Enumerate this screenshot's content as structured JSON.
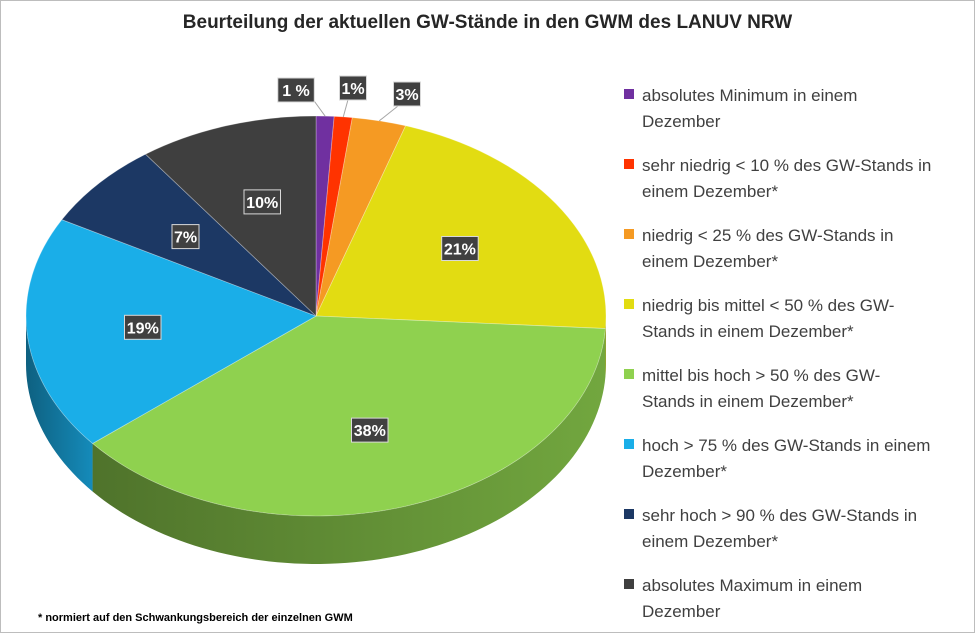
{
  "chart_data": {
    "type": "pie",
    "title": "Beurteilung der aktuellen GW-Stände in den GWM des LANUV NRW",
    "slices": [
      {
        "label": "absolutes Minimum  in einem Dezember",
        "value": 1,
        "display": "1 %",
        "color": "#7030a0"
      },
      {
        "label": "sehr niedrig  < 10 % des GW-Stands in einem Dezember*",
        "value": 1,
        "display": "1%",
        "color": "#ff3300"
      },
      {
        "label": "niedrig   < 25 % des GW-Stands in einem Dezember*",
        "value": 3,
        "display": "3%",
        "color": "#f59a23"
      },
      {
        "label": "niedrig bis mittel  < 50 % des GW-Stands in einem Dezember*",
        "value": 21,
        "display": "21%",
        "color": "#e2dc12"
      },
      {
        "label": "mittel bis hoch  > 50 % des GW-Stands in einem Dezember*",
        "value": 38,
        "display": "38%",
        "color": "#8fd14f"
      },
      {
        "label": "hoch  > 75 % des GW-Stands in einem Dezember*",
        "value": 19,
        "display": "19%",
        "color": "#1aaee8"
      },
      {
        "label": "sehr hoch  > 90 % des GW-Stands in einem Dezember*",
        "value": 7,
        "display": "7%",
        "color": "#1c3864"
      },
      {
        "label": "absolutes Maximum  in einem Dezember",
        "value": 10,
        "display": "10%",
        "color": "#3f3f3f"
      }
    ],
    "legend_position": "right",
    "footnote": "* normiert auf den Schwankungsbereich der einzelnen GWM"
  },
  "legend": {
    "items": [
      {
        "text": "absolutes Minimum  in einem\nDezember",
        "color": "#7030a0"
      },
      {
        "text": "sehr niedrig  < 10 % des GW-Stands in\neinem Dezember*",
        "color": "#ff3300"
      },
      {
        "text": "niedrig   < 25 % des GW-Stands in\neinem Dezember*",
        "color": "#f59a23"
      },
      {
        "text": "niedrig bis mittel  < 50 % des GW-\nStands in einem Dezember*",
        "color": "#e2dc12"
      },
      {
        "text": "mittel bis hoch  > 50 % des GW-\nStands in einem Dezember*",
        "color": "#8fd14f"
      },
      {
        "text": "hoch  > 75 % des GW-Stands in einem\nDezember*",
        "color": "#1aaee8"
      },
      {
        "text": "sehr hoch  > 90 % des GW-Stands in\neinem Dezember*",
        "color": "#1c3864"
      },
      {
        "text": "absolutes Maximum  in einem\nDezember",
        "color": "#3f3f3f"
      }
    ]
  }
}
